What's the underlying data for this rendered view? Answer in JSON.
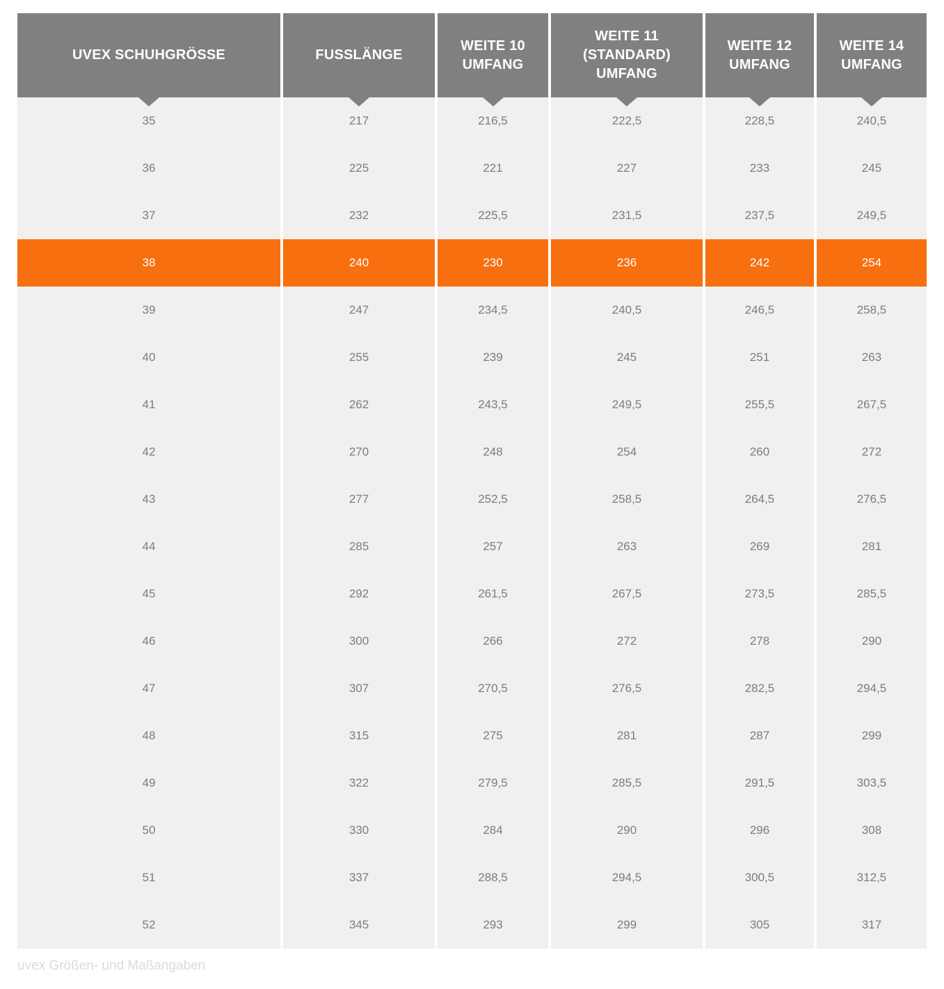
{
  "chart_data": {
    "type": "table",
    "title": "uvex Größen- und Maßangaben",
    "columns": [
      "UVEX SCHUHGRÖSSE",
      "FUSSLÄNGE",
      "WEITE 10 UMFANG",
      "WEITE 11 (STANDARD) UMFANG",
      "WEITE 12 UMFANG",
      "WEITE 14 UMFANG"
    ],
    "header_lines": [
      [
        "UVEX SCHUHGRÖSSE"
      ],
      [
        "FUSSLÄNGE"
      ],
      [
        "WEITE 10",
        "UMFANG"
      ],
      [
        "WEITE 11",
        "(STANDARD)",
        "UMFANG"
      ],
      [
        "WEITE 12",
        "UMFANG"
      ],
      [
        "WEITE 14",
        "UMFANG"
      ]
    ],
    "rows": [
      [
        "35",
        "217",
        "216,5",
        "222,5",
        "228,5",
        "240,5"
      ],
      [
        "36",
        "225",
        "221",
        "227",
        "233",
        "245"
      ],
      [
        "37",
        "232",
        "225,5",
        "231,5",
        "237,5",
        "249,5"
      ],
      [
        "38",
        "240",
        "230",
        "236",
        "242",
        "254"
      ],
      [
        "39",
        "247",
        "234,5",
        "240,5",
        "246,5",
        "258,5"
      ],
      [
        "40",
        "255",
        "239",
        "245",
        "251",
        "263"
      ],
      [
        "41",
        "262",
        "243,5",
        "249,5",
        "255,5",
        "267,5"
      ],
      [
        "42",
        "270",
        "248",
        "254",
        "260",
        "272"
      ],
      [
        "43",
        "277",
        "252,5",
        "258,5",
        "264,5",
        "276,5"
      ],
      [
        "44",
        "285",
        "257",
        "263",
        "269",
        "281"
      ],
      [
        "45",
        "292",
        "261,5",
        "267,5",
        "273,5",
        "285,5"
      ],
      [
        "46",
        "300",
        "266",
        "272",
        "278",
        "290"
      ],
      [
        "47",
        "307",
        "270,5",
        "276,5",
        "282,5",
        "294,5"
      ],
      [
        "48",
        "315",
        "275",
        "281",
        "287",
        "299"
      ],
      [
        "49",
        "322",
        "279,5",
        "285,5",
        "291,5",
        "303,5"
      ],
      [
        "50",
        "330",
        "284",
        "290",
        "296",
        "308"
      ],
      [
        "51",
        "337",
        "288,5",
        "294,5",
        "300,5",
        "312,5"
      ],
      [
        "52",
        "345",
        "293",
        "299",
        "305",
        "317"
      ]
    ],
    "highlighted_row_index": 3,
    "highlighted_row_size": "38",
    "caption": "uvex Größen- und Maßangaben"
  },
  "colors": {
    "page_bg": "#FFFFFF",
    "header_bg": "#81807E",
    "header_text": "#FFFFFF",
    "row_bg": "#F1F0EF",
    "row_text": "#7C7C7C",
    "highlight_bg": "#F76F0E",
    "highlight_text": "#FFFFFF",
    "caption_text": "#DBDBDB"
  },
  "column_header_names": [
    "uvex-schuhgroesse",
    "fusslaenge",
    "weite-10-umfang",
    "weite-11-standard-umfang",
    "weite-12-umfang",
    "weite-14-umfang"
  ]
}
